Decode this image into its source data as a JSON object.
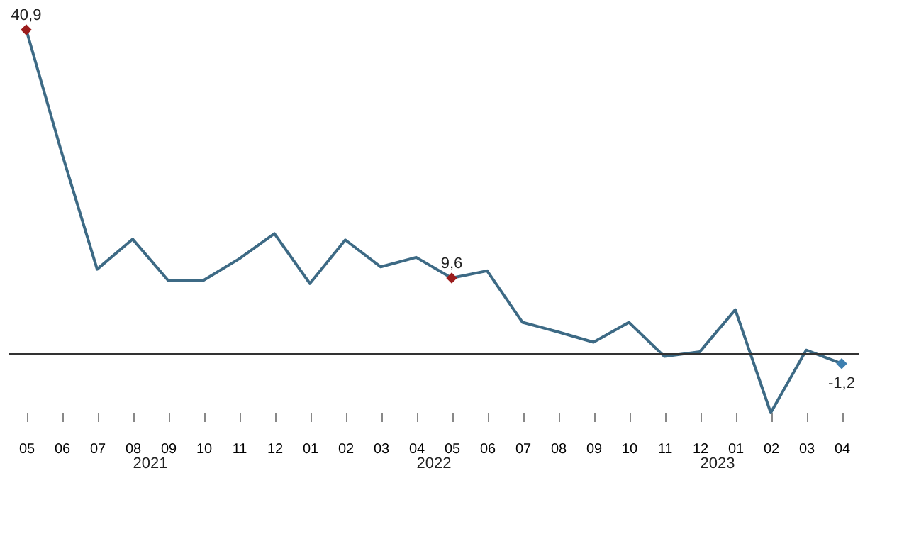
{
  "chart_data": {
    "type": "line",
    "categories": [
      "05",
      "06",
      "07",
      "08",
      "09",
      "10",
      "11",
      "12",
      "01",
      "02",
      "03",
      "04",
      "05",
      "06",
      "07",
      "08",
      "09",
      "10",
      "11",
      "12",
      "01",
      "02",
      "03",
      "04"
    ],
    "series": [
      {
        "color": "#3d6a85",
        "values": [
          40.9,
          25.4,
          10.7,
          14.5,
          9.3,
          9.3,
          12,
          15.2,
          8.9,
          14.4,
          11,
          12.2,
          9.6,
          10.5,
          4,
          2.8,
          1.5,
          4,
          -0.3,
          0.3,
          5.6,
          -7.4,
          0.5,
          -1.2
        ],
        "value_labels": [
          "40,9",
          null,
          null,
          null,
          null,
          null,
          null,
          null,
          null,
          null,
          null,
          null,
          "9,6",
          null,
          null,
          null,
          null,
          null,
          null,
          null,
          null,
          null,
          null,
          "-1,2"
        ],
        "colors": [
          "#9b1c1c",
          null,
          null,
          null,
          null,
          null,
          null,
          null,
          null,
          null,
          null,
          null,
          "#9b1c1c",
          null,
          null,
          null,
          null,
          null,
          null,
          null,
          null,
          null,
          null,
          "#3d7fb0"
        ]
      }
    ],
    "annotations": [
      "2021",
      "2022",
      "2023"
    ],
    "grid": false,
    "tick_labels": "x"
  }
}
